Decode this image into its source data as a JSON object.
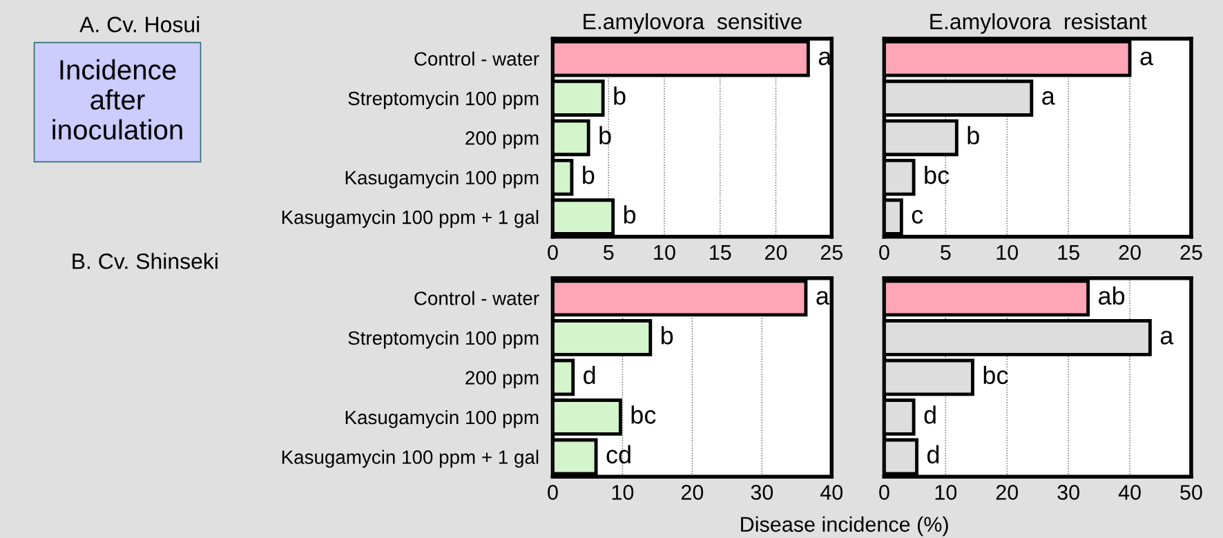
{
  "chart_data": [
    {
      "type": "bar",
      "orientation": "horizontal",
      "title": "E.amylovora  sensitive",
      "categories": [
        "Control - water",
        "Streptomycin 100 ppm",
        "200 ppm",
        "Kasugamycin 100 ppm",
        "Kasugamycin 100 ppm + 1 gal"
      ],
      "values": [
        22.9,
        4.5,
        3.2,
        1.7,
        5.4
      ],
      "colors": [
        "#ffa6b6",
        "#d4f4cc",
        "#d4f4cc",
        "#d4f4cc",
        "#d4f4cc"
      ],
      "value_labels": [
        "a",
        "b",
        "b",
        "b",
        "b"
      ],
      "xlim": [
        0,
        25
      ],
      "xticks": [
        0,
        5,
        10,
        15,
        20,
        25
      ],
      "grid": "x",
      "annotations": [
        "A. Cv. Hosui",
        "Incidence\nafter\ninoculation"
      ]
    },
    {
      "type": "bar",
      "orientation": "horizontal",
      "title": "E.amylovora  resistant",
      "categories": [
        null,
        null,
        null,
        null,
        null
      ],
      "values": [
        20.0,
        12.0,
        5.9,
        2.4,
        1.4
      ],
      "colors": [
        "#ffa6b6",
        "#dddddd",
        "#dddddd",
        "#dddddd",
        "#dddddd"
      ],
      "value_labels": [
        "a",
        "a",
        "b",
        "bc",
        "c"
      ],
      "xlim": [
        0,
        25
      ],
      "xticks": [
        0,
        5,
        10,
        15,
        20,
        25
      ],
      "grid": "x",
      "tick_labels": "x"
    },
    {
      "type": "bar",
      "orientation": "horizontal",
      "categories": [
        "Control - water",
        "Streptomycin 100 ppm",
        "200 ppm",
        "Kasugamycin 100 ppm",
        "Kasugamycin 100 ppm + 1 gal"
      ],
      "values": [
        36.3,
        14.0,
        2.9,
        9.7,
        6.2
      ],
      "colors": [
        "#ffa6b6",
        "#d4f4cc",
        "#d4f4cc",
        "#d4f4cc",
        "#d4f4cc"
      ],
      "value_labels": [
        "a",
        "b",
        "d",
        "bc",
        "cd"
      ],
      "xlim": [
        0,
        40
      ],
      "xticks": [
        0,
        10,
        20,
        30,
        40
      ],
      "grid": "x",
      "annotations": [
        "B. Cv. Shinseki"
      ]
    },
    {
      "type": "bar",
      "orientation": "horizontal",
      "xlabel": "Disease incidence (%)",
      "categories": [
        null,
        null,
        null,
        null,
        null
      ],
      "values": [
        33.2,
        43.3,
        14.4,
        4.8,
        5.3
      ],
      "colors": [
        "#ffa6b6",
        "#dddddd",
        "#dddddd",
        "#dddddd",
        "#dddddd"
      ],
      "value_labels": [
        "ab",
        "a",
        "bc",
        "d",
        "d"
      ],
      "xlim": [
        0,
        50
      ],
      "xticks": [
        0,
        10,
        20,
        30,
        40,
        50
      ],
      "grid": "x",
      "tick_labels": "x"
    }
  ]
}
